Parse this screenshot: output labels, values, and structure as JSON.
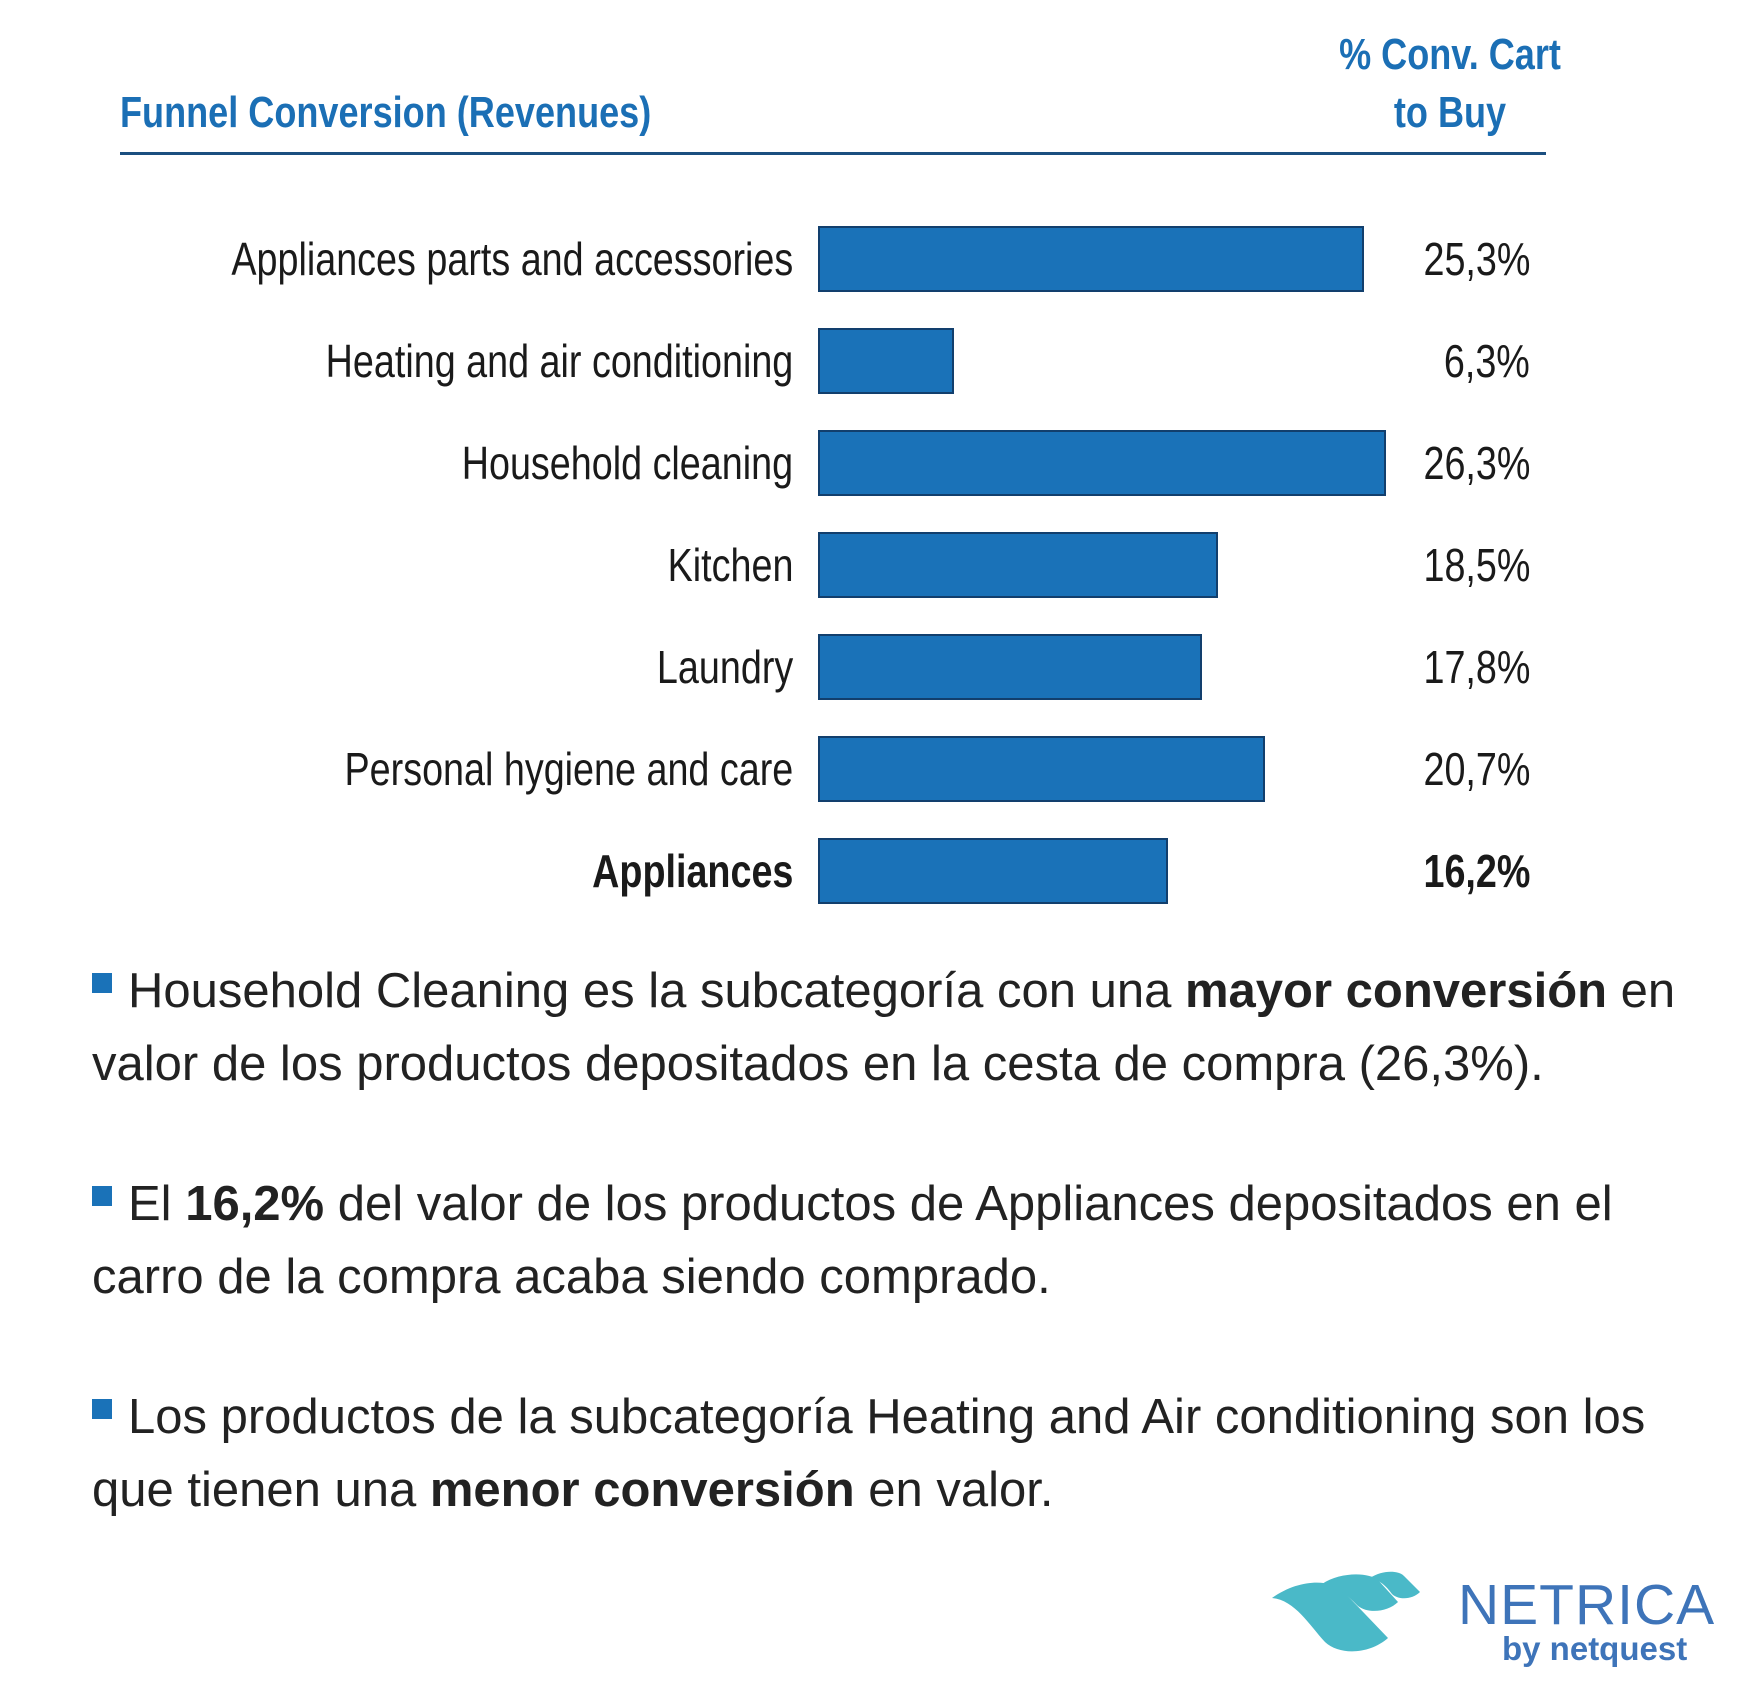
{
  "chart_data": {
    "type": "bar",
    "orientation": "horizontal",
    "title": "Funnel Conversion (Revenues)",
    "value_header": "% Conv. Cart to Buy",
    "value_header_lines": [
      "% Conv. Cart",
      "to Buy"
    ],
    "categories": [
      "Appliances parts and accessories",
      "Heating and air conditioning",
      "Household cleaning",
      "Kitchen",
      "Laundry",
      "Personal hygiene and care",
      "Appliances"
    ],
    "values": [
      25.3,
      6.3,
      26.3,
      18.5,
      17.8,
      20.7,
      16.2
    ],
    "value_labels": [
      "25,3%",
      "6,3%",
      "26,3%",
      "18,5%",
      "17,8%",
      "20,7%",
      "16,2%"
    ],
    "bold_category": "Appliances",
    "bar_color": "#1a72b8",
    "xlim": [
      0,
      26.3
    ]
  },
  "notes": [
    {
      "pre": "Household Cleaning es la subcategoría con una ",
      "bold": "mayor conversión",
      "post": " en valor de los productos depositados en la cesta de compra (26,3%)."
    },
    {
      "pre": "El ",
      "bold": "16,2%",
      "post": " del valor de los productos de Appliances depositados en el carro de la compra acaba siendo comprado."
    },
    {
      "pre": "Los productos de la subcategoría Heating and Air conditioning son los que tienen una ",
      "bold": "menor conversión",
      "post": " en valor."
    }
  ],
  "logo": {
    "name": "NETRICA",
    "sub": "by netquest"
  }
}
